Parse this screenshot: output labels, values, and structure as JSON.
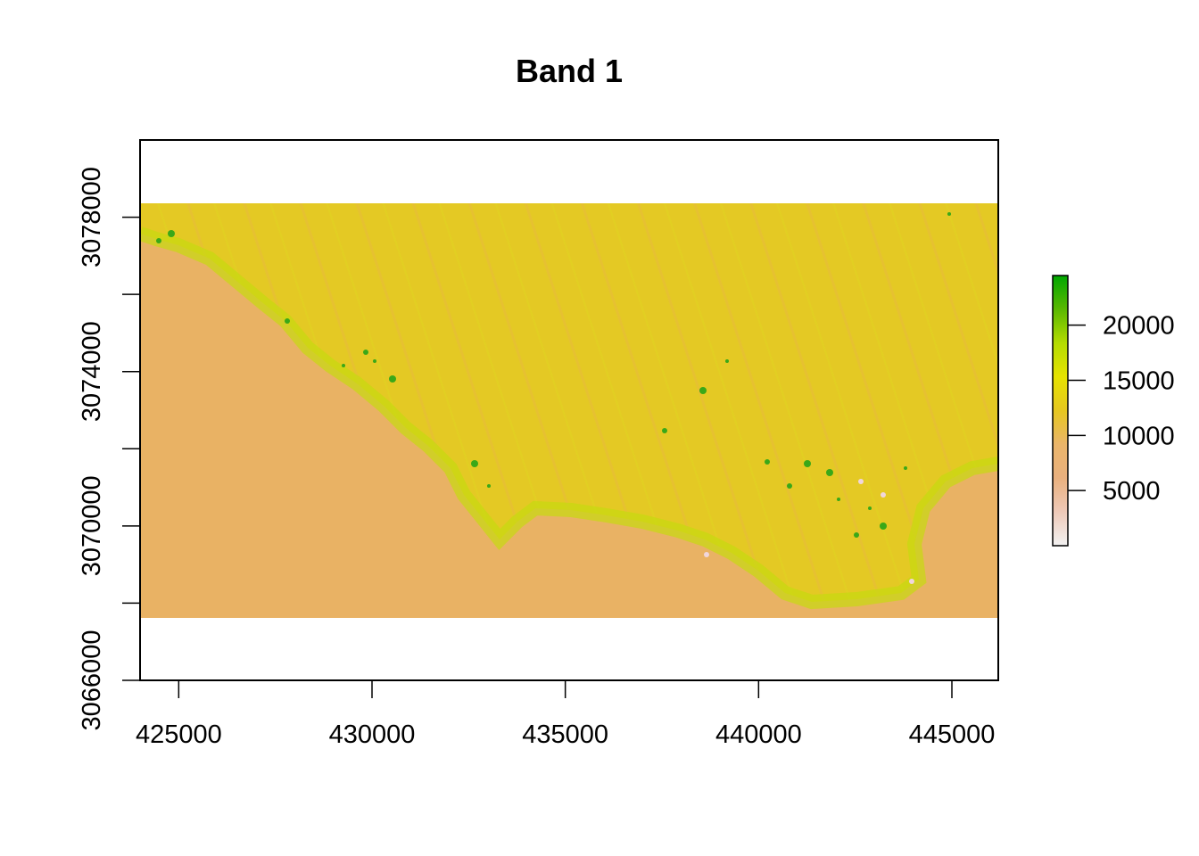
{
  "chart_data": {
    "type": "heatmap",
    "title": "Band 1",
    "xlabel": "",
    "ylabel": "",
    "xlim": [
      424000,
      446200
    ],
    "ylim": [
      3066000,
      3080000
    ],
    "raster_extent": {
      "x": [
        424000,
        446200
      ],
      "y": [
        3067600,
        3078300
      ]
    },
    "x_ticks": [
      425000,
      430000,
      435000,
      440000,
      445000
    ],
    "x_tick_labels": [
      "425000",
      "430000",
      "435000",
      "440000",
      "445000"
    ],
    "y_ticks": [
      3066000,
      3068000,
      3070000,
      3072000,
      3074000,
      3076000,
      3078000
    ],
    "y_tick_labels": [
      "3066000",
      "",
      "3070000",
      "",
      "3074000",
      "",
      "3078000"
    ],
    "legend": {
      "placement": "right",
      "range": [
        0,
        24500
      ],
      "ticks": [
        5000,
        10000,
        15000,
        20000
      ],
      "tick_labels": [
        "5000",
        "10000",
        "15000",
        "20000"
      ],
      "palette": [
        "#f2f2f2",
        "#eec9b8",
        "#e9b07e",
        "#eab56a",
        "#e6c71f",
        "#e6e300",
        "#b4dc00",
        "#5ab800",
        "#00a600"
      ]
    },
    "colors": {
      "water": "#e9b264",
      "land": "#e4c924",
      "bright": "#c6da10",
      "vegetation": "#3aa818",
      "urban": "#f0d6dc"
    },
    "grid": false
  }
}
